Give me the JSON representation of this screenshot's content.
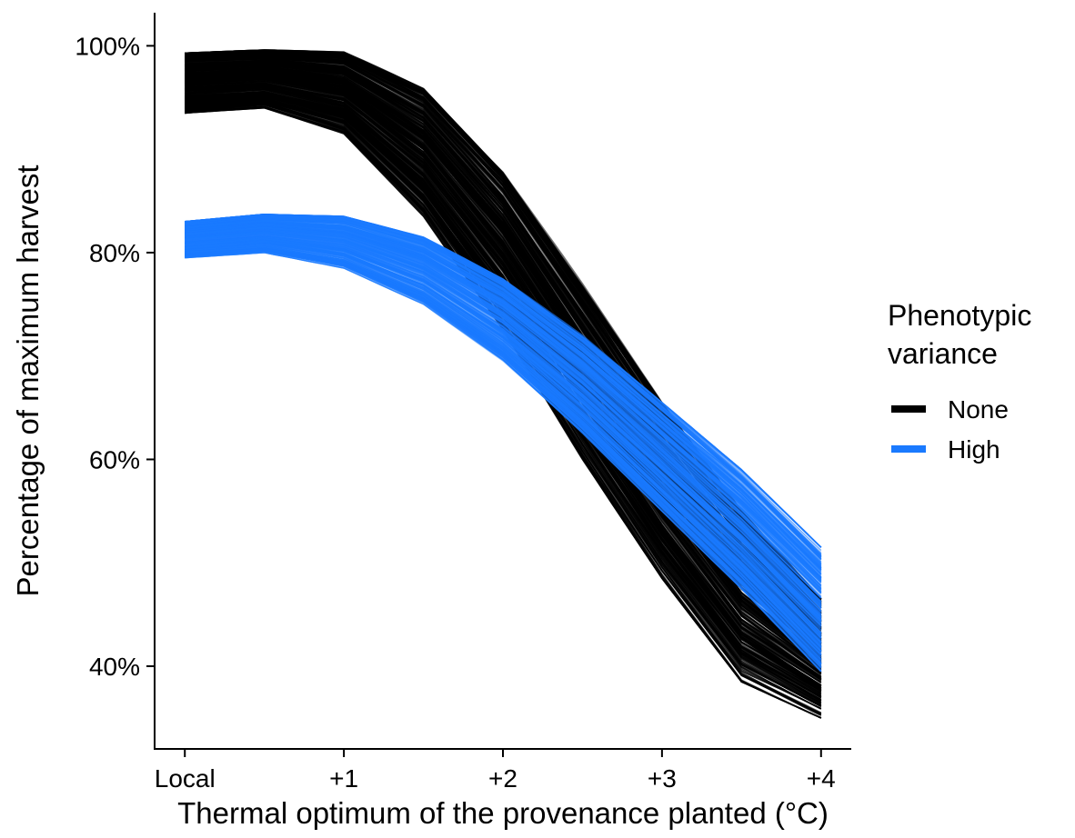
{
  "chart_data": {
    "type": "line",
    "xlabel": "Thermal optimum of the provenance planted (°C)",
    "ylabel": "Percentage of maximum harvest",
    "x_ticks": [
      {
        "value": 0,
        "label": "Local"
      },
      {
        "value": 1,
        "label": "+1"
      },
      {
        "value": 2,
        "label": "+2"
      },
      {
        "value": 3,
        "label": "+3"
      },
      {
        "value": 4,
        "label": "+4"
      }
    ],
    "y_ticks": [
      {
        "value": 40,
        "label": "40%"
      },
      {
        "value": 60,
        "label": "60%"
      },
      {
        "value": 80,
        "label": "80%"
      },
      {
        "value": 100,
        "label": "100%"
      }
    ],
    "xlim": [
      -0.19,
      4.19
    ],
    "ylim": [
      32.0,
      103.2
    ],
    "grid": false,
    "legend": {
      "title_lines": [
        "Phenotypic",
        "variance"
      ],
      "position": "right",
      "entries": [
        {
          "name": "None",
          "color": "#000000"
        },
        {
          "name": "High",
          "color": "#1a7aff"
        }
      ]
    },
    "series": [
      {
        "name": "None",
        "color": "#000000",
        "x": [
          0,
          0.5,
          1,
          1.5,
          2,
          2.5,
          3,
          3.5,
          4
        ],
        "values": [
          97,
          98.5,
          97.5,
          91,
          81,
          69,
          57,
          46.5,
          38.5
        ],
        "band_upper": [
          99.3,
          99.6,
          99.4,
          96,
          88,
          77,
          65.5,
          55,
          46.5
        ],
        "band_lower": [
          93.5,
          94,
          91.5,
          83.5,
          72.5,
          60,
          48.5,
          38.5,
          35
        ],
        "replicates": 300
      },
      {
        "name": "High",
        "color": "#1a7aff",
        "x": [
          0,
          0.5,
          1,
          1.5,
          2,
          2.5,
          3,
          3.5,
          4
        ],
        "values": [
          81.5,
          82.5,
          82,
          79.5,
          75,
          69,
          62,
          54.5,
          46.5
        ],
        "band_upper": [
          83,
          83.7,
          83.5,
          81.5,
          77.5,
          72,
          65.5,
          59,
          51.5
        ],
        "band_lower": [
          79.5,
          80,
          78.5,
          75,
          69.5,
          62.5,
          55,
          47.5,
          39.5
        ],
        "replicates": 300
      }
    ]
  }
}
